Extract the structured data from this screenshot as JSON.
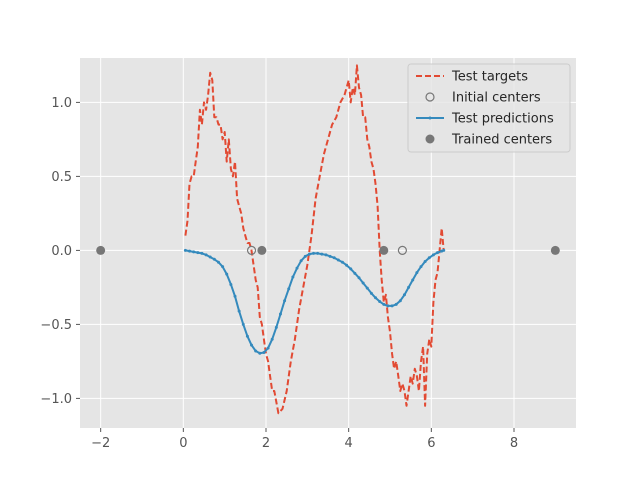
{
  "chart_data": {
    "type": "line",
    "title": "",
    "xlabel": "",
    "ylabel": "",
    "xlim": [
      -2.5,
      9.5
    ],
    "ylim": [
      -1.2,
      1.3
    ],
    "xticks": [
      -2,
      0,
      2,
      4,
      6,
      8
    ],
    "xtick_labels": [
      "−2",
      "0",
      "2",
      "4",
      "6",
      "8"
    ],
    "yticks": [
      -1.0,
      -0.5,
      0.0,
      0.5,
      1.0
    ],
    "ytick_labels": [
      "−1.0",
      "−0.5",
      "0.0",
      "0.5",
      "1.0"
    ],
    "grid": true,
    "legend_position": "upper right",
    "colors": {
      "axes_bg": "#e5e5e5",
      "grid": "#ffffff",
      "targets": "#e24a33",
      "predictions": "#348abd",
      "centers": "#777777"
    },
    "series": [
      {
        "name": "Test targets",
        "style": "dashed",
        "x": [
          0.05,
          0.1,
          0.15,
          0.2,
          0.25,
          0.3,
          0.35,
          0.4,
          0.45,
          0.5,
          0.55,
          0.6,
          0.65,
          0.7,
          0.75,
          0.8,
          0.85,
          0.9,
          0.95,
          1.0,
          1.05,
          1.1,
          1.15,
          1.2,
          1.25,
          1.3,
          1.35,
          1.4,
          1.45,
          1.5,
          1.55,
          1.6,
          1.65,
          1.7,
          1.75,
          1.8,
          1.85,
          1.9,
          1.95,
          2.0,
          2.05,
          2.1,
          2.15,
          2.2,
          2.3,
          2.4,
          2.5,
          2.6,
          2.7,
          2.8,
          2.9,
          3.0,
          3.1,
          3.2,
          3.3,
          3.4,
          3.5,
          3.6,
          3.7,
          3.8,
          3.9,
          4.0,
          4.05,
          4.1,
          4.15,
          4.2,
          4.25,
          4.3,
          4.35,
          4.4,
          4.45,
          4.5,
          4.55,
          4.6,
          4.65,
          4.7,
          4.75,
          4.8,
          4.85,
          4.9,
          4.95,
          5.0,
          5.05,
          5.1,
          5.15,
          5.2,
          5.25,
          5.3,
          5.35,
          5.4,
          5.45,
          5.5,
          5.55,
          5.6,
          5.65,
          5.7,
          5.75,
          5.8,
          5.85,
          5.9,
          5.95,
          6.0,
          6.05,
          6.1,
          6.15,
          6.2,
          6.25,
          6.3
        ],
        "y": [
          0.1,
          0.2,
          0.45,
          0.5,
          0.5,
          0.6,
          0.7,
          0.95,
          0.85,
          1.0,
          0.95,
          1.05,
          1.2,
          1.15,
          0.9,
          0.9,
          0.85,
          0.85,
          0.75,
          0.8,
          0.6,
          0.75,
          0.55,
          0.5,
          0.6,
          0.35,
          0.3,
          0.25,
          0.15,
          0.1,
          0.05,
          0.05,
          0.0,
          -0.1,
          -0.2,
          -0.25,
          -0.45,
          -0.5,
          -0.6,
          -0.7,
          -0.75,
          -0.85,
          -0.95,
          -0.95,
          -1.1,
          -1.07,
          -0.95,
          -0.75,
          -0.6,
          -0.4,
          -0.25,
          -0.1,
          0.1,
          0.35,
          0.5,
          0.65,
          0.75,
          0.85,
          0.9,
          1.0,
          1.05,
          1.15,
          1.0,
          1.1,
          1.05,
          1.25,
          1.1,
          1.05,
          0.9,
          0.9,
          0.75,
          0.7,
          0.6,
          0.55,
          0.45,
          0.3,
          0.0,
          -0.2,
          -0.35,
          -0.3,
          -0.45,
          -0.55,
          -0.7,
          -0.8,
          -0.75,
          -0.85,
          -0.95,
          -0.9,
          -0.95,
          -1.05,
          -0.95,
          -0.85,
          -0.9,
          -0.8,
          -0.85,
          -0.95,
          -0.75,
          -0.65,
          -1.05,
          -0.7,
          -0.6,
          -0.65,
          -0.35,
          -0.2,
          -0.15,
          0.0,
          0.15,
          0.0
        ]
      },
      {
        "name": "Test predictions",
        "style": "solid-marker",
        "x": [
          0.05,
          0.15,
          0.25,
          0.35,
          0.45,
          0.55,
          0.65,
          0.75,
          0.85,
          0.95,
          1.05,
          1.15,
          1.25,
          1.35,
          1.45,
          1.55,
          1.65,
          1.75,
          1.85,
          1.95,
          2.05,
          2.15,
          2.25,
          2.35,
          2.45,
          2.55,
          2.65,
          2.75,
          2.85,
          2.95,
          3.05,
          3.15,
          3.25,
          3.35,
          3.45,
          3.55,
          3.65,
          3.75,
          3.85,
          3.95,
          4.05,
          4.15,
          4.25,
          4.35,
          4.45,
          4.55,
          4.65,
          4.75,
          4.85,
          4.95,
          5.05,
          5.15,
          5.25,
          5.35,
          5.45,
          5.55,
          5.65,
          5.75,
          5.85,
          5.95,
          6.05,
          6.15,
          6.25,
          6.3
        ],
        "y": [
          0.0,
          -0.005,
          -0.01,
          -0.015,
          -0.02,
          -0.03,
          -0.045,
          -0.06,
          -0.08,
          -0.11,
          -0.16,
          -0.23,
          -0.31,
          -0.41,
          -0.5,
          -0.58,
          -0.64,
          -0.68,
          -0.695,
          -0.69,
          -0.66,
          -0.6,
          -0.52,
          -0.43,
          -0.34,
          -0.26,
          -0.18,
          -0.12,
          -0.07,
          -0.04,
          -0.025,
          -0.02,
          -0.02,
          -0.025,
          -0.03,
          -0.04,
          -0.05,
          -0.065,
          -0.08,
          -0.1,
          -0.125,
          -0.155,
          -0.185,
          -0.22,
          -0.255,
          -0.29,
          -0.32,
          -0.345,
          -0.365,
          -0.375,
          -0.375,
          -0.365,
          -0.34,
          -0.3,
          -0.25,
          -0.2,
          -0.15,
          -0.11,
          -0.075,
          -0.05,
          -0.03,
          -0.015,
          -0.005,
          0.0
        ]
      }
    ],
    "points": [
      {
        "name": "Initial centers",
        "style": "open-circle",
        "x": [
          1.65,
          5.3
        ],
        "y": [
          0.0,
          0.0
        ]
      },
      {
        "name": "Trained centers",
        "style": "filled-circle",
        "x": [
          -2.0,
          1.9,
          4.85,
          9.0
        ],
        "y": [
          0.0,
          0.0,
          0.0,
          0.0
        ]
      }
    ],
    "legend": [
      "Test targets",
      "Initial centers",
      "Test predictions",
      "Trained centers"
    ]
  }
}
